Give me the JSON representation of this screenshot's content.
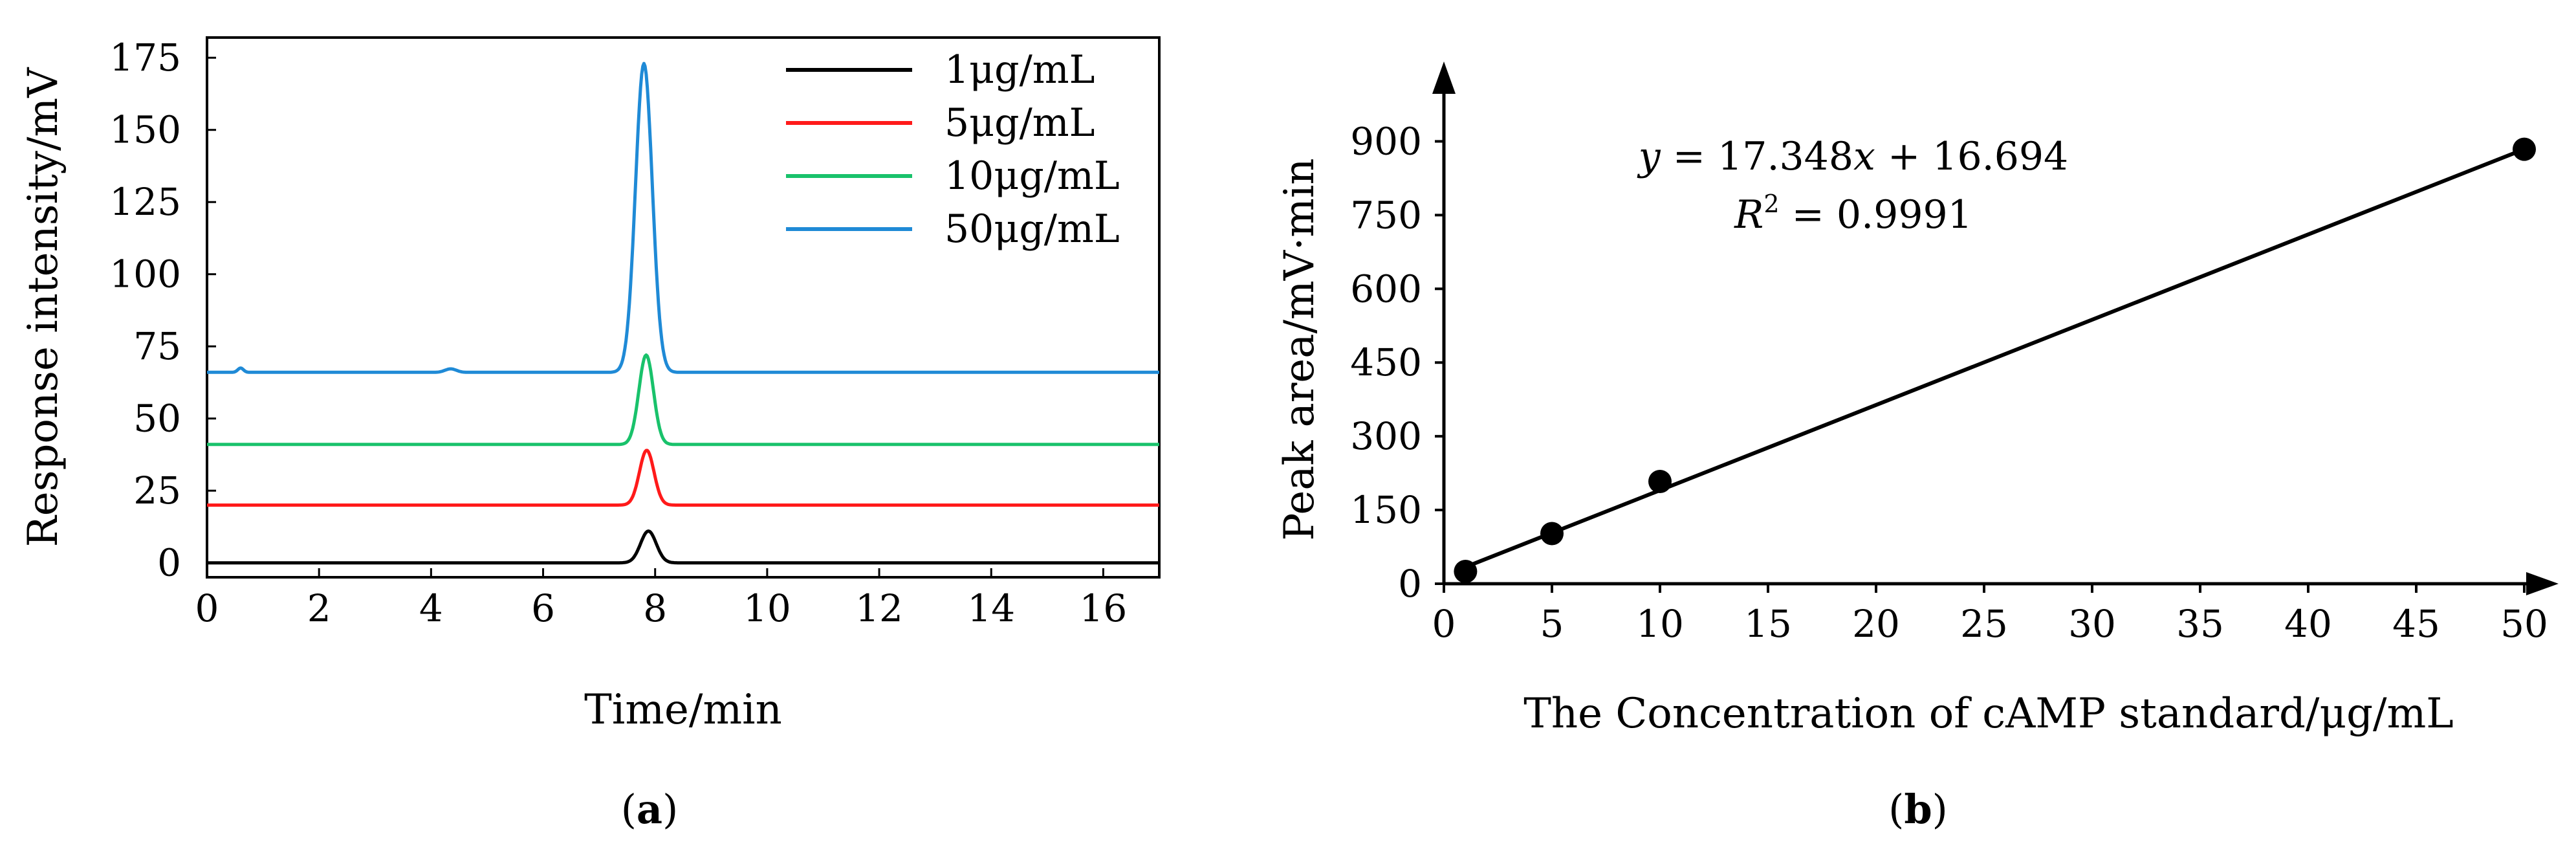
{
  "colors": {
    "axis": "#000000",
    "series_1": "#000000",
    "series_5": "#ff1a1a",
    "series_10": "#19c26b",
    "series_50": "#1f8ad6",
    "fit": "#000000"
  },
  "chart_data": [
    {
      "id": "a",
      "type": "line",
      "title": "",
      "xlabel": "Time/min",
      "ylabel": "Response intensity/mV",
      "xlim": [
        0,
        17
      ],
      "ylim": [
        -5,
        182
      ],
      "xticks": [
        0,
        2,
        4,
        6,
        8,
        10,
        12,
        14,
        16
      ],
      "yticks": [
        0,
        25,
        50,
        75,
        100,
        125,
        150,
        175
      ],
      "legend_position": "top-right",
      "series": [
        {
          "name": "1μg/mL",
          "color_key": "series_1",
          "baseline": 0,
          "peaks": [
            {
              "center": 7.88,
              "height": 11,
              "sigma": 0.14
            }
          ],
          "bumps": []
        },
        {
          "name": "5μg/mL",
          "color_key": "series_5",
          "baseline": 20,
          "peaks": [
            {
              "center": 7.85,
              "height": 19,
              "sigma": 0.13
            }
          ],
          "bumps": []
        },
        {
          "name": "10μg/mL",
          "color_key": "series_10",
          "baseline": 41,
          "peaks": [
            {
              "center": 7.84,
              "height": 31,
              "sigma": 0.13
            }
          ],
          "bumps": []
        },
        {
          "name": "50μg/mL",
          "color_key": "series_50",
          "baseline": 66,
          "peaks": [
            {
              "center": 7.8,
              "height": 107,
              "sigma": 0.15
            }
          ],
          "bumps": [
            {
              "center": 0.6,
              "height": 1.5,
              "sigma": 0.05
            },
            {
              "center": 4.35,
              "height": 1.2,
              "sigma": 0.1
            }
          ]
        }
      ],
      "panel_label": {
        "open": "(",
        "letter": "a",
        "close": ")"
      }
    },
    {
      "id": "b",
      "type": "scatter",
      "title": "",
      "xlabel": "The Concentration of cAMP standard/μg/mL",
      "ylabel": "Peak area/mV·min",
      "xlim": [
        0,
        54
      ],
      "ylim": [
        0,
        1050
      ],
      "xticks": [
        0,
        5,
        10,
        15,
        20,
        25,
        30,
        35,
        40,
        45,
        50
      ],
      "yticks": [
        0,
        150,
        300,
        450,
        600,
        750,
        900
      ],
      "points": [
        {
          "x": 1,
          "y": 25
        },
        {
          "x": 5,
          "y": 102
        },
        {
          "x": 10,
          "y": 208
        },
        {
          "x": 50,
          "y": 884
        }
      ],
      "fit": {
        "slope": 17.348,
        "intercept": 16.694,
        "x_range": [
          1,
          50
        ]
      },
      "annotation": {
        "equation": {
          "y": "y",
          "eq": " = 17.348",
          "x": "x",
          "rest": " + 16.694"
        },
        "r2": {
          "r": "R",
          "sup": "2",
          "rest": " = 0.9991"
        }
      },
      "panel_label": {
        "open": "(",
        "letter": "b",
        "close": ")"
      }
    }
  ]
}
